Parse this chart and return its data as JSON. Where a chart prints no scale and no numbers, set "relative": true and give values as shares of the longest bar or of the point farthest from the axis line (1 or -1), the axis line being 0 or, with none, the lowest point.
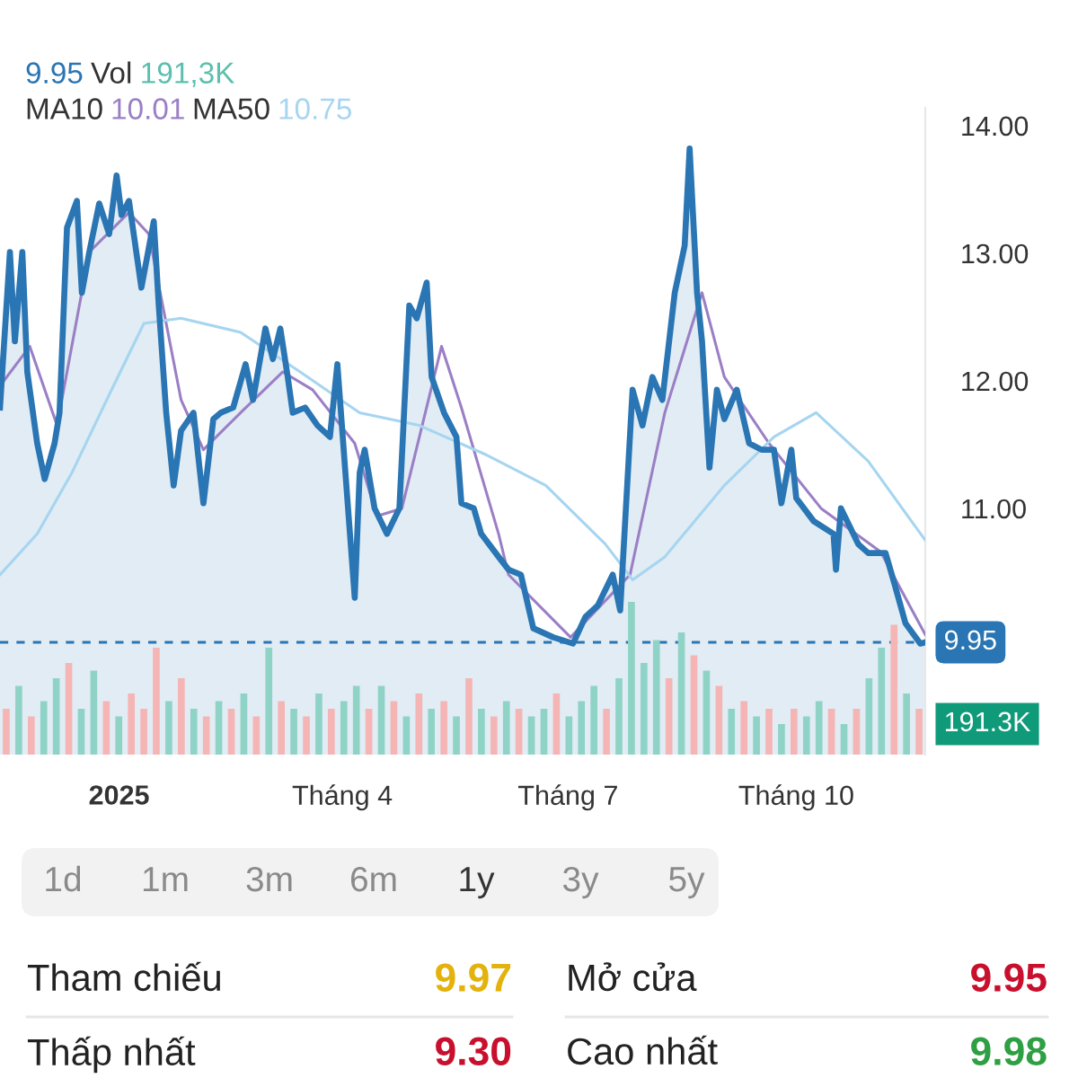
{
  "chart_data": [
    {
      "type": "line",
      "annotations": [
        "9.95",
        "Vol",
        "191,3K",
        "MA10",
        "10.01",
        "MA50",
        "10.75"
      ],
      "xlim": [
        "2024-11-14",
        "2025-11-22"
      ],
      "xticks": [
        {
          "value": "2025-01-01",
          "label": "2025"
        },
        {
          "value": "2025-04-01",
          "label": "Tháng 4"
        },
        {
          "value": "2025-07-01",
          "label": "Tháng 7"
        },
        {
          "value": "2025-10-01",
          "label": "Tháng 10"
        }
      ],
      "ylim": [
        9.07,
        14.14
      ],
      "yticks": [
        {
          "value": 11,
          "label": "11.00"
        },
        {
          "value": 12,
          "label": "12.00"
        },
        {
          "value": 13,
          "label": "13.00"
        },
        {
          "value": 14,
          "label": "14.00"
        }
      ],
      "ref_lines": [
        {
          "axis": "y",
          "value": 9.95,
          "label": "9.95",
          "color": "#2a75b3",
          "line_style": "dashed"
        }
      ],
      "series": [
        {
          "type": "area",
          "color": "#2a75b3",
          "x": [
            "2024-11-14",
            "2024-11-18",
            "2024-11-20",
            "2024-11-23",
            "2024-11-25",
            "2024-11-29",
            "2024-12-02",
            "2024-12-06",
            "2024-12-08",
            "2024-12-11",
            "2024-12-15",
            "2024-12-17",
            "2024-12-20",
            "2024-12-24",
            "2024-12-28",
            "2024-12-31",
            "2025-01-02",
            "2025-01-05",
            "2025-01-10",
            "2025-01-15",
            "2025-01-17",
            "2025-01-20",
            "2025-01-23",
            "2025-01-26",
            "2025-01-31",
            "2025-02-04",
            "2025-02-08",
            "2025-02-11",
            "2025-02-16",
            "2025-02-21",
            "2025-02-24",
            "2025-03-01",
            "2025-03-04",
            "2025-03-07",
            "2025-03-10",
            "2025-03-12",
            "2025-03-17",
            "2025-03-22",
            "2025-03-27",
            "2025-03-30",
            "2025-04-03",
            "2025-04-06",
            "2025-04-08",
            "2025-04-10",
            "2025-04-14",
            "2025-04-19",
            "2025-04-24",
            "2025-04-28",
            "2025-05-01",
            "2025-05-05",
            "2025-05-07",
            "2025-05-12",
            "2025-05-17",
            "2025-05-19",
            "2025-05-24",
            "2025-05-27",
            "2025-06-03",
            "2025-06-07",
            "2025-06-12",
            "2025-06-17",
            "2025-06-25",
            "2025-07-03",
            "2025-07-08",
            "2025-07-13",
            "2025-07-19",
            "2025-07-22",
            "2025-07-27",
            "2025-07-31",
            "2025-08-04",
            "2025-08-08",
            "2025-08-13",
            "2025-08-17",
            "2025-08-19",
            "2025-08-22",
            "2025-08-24",
            "2025-08-27",
            "2025-08-30",
            "2025-09-02",
            "2025-09-07",
            "2025-09-12",
            "2025-09-17",
            "2025-09-22",
            "2025-09-25",
            "2025-09-29",
            "2025-10-01",
            "2025-10-08",
            "2025-10-16",
            "2025-10-17",
            "2025-10-19",
            "2025-10-26",
            "2025-10-30",
            "2025-11-06",
            "2025-11-10",
            "2025-11-14",
            "2025-11-20",
            "2025-11-22"
          ],
          "values": [
            11.79,
            13.01,
            12.31,
            13.01,
            12.07,
            11.51,
            11.23,
            11.51,
            11.75,
            13.2,
            13.41,
            12.69,
            13.01,
            13.39,
            13.15,
            13.61,
            13.3,
            13.41,
            12.73,
            13.25,
            12.59,
            11.75,
            11.18,
            11.61,
            11.75,
            11.04,
            11.7,
            11.75,
            11.79,
            12.13,
            11.85,
            12.41,
            12.17,
            12.41,
            12.03,
            11.75,
            11.79,
            11.65,
            11.56,
            12.13,
            11.08,
            10.3,
            11.28,
            11.46,
            11.0,
            10.8,
            11.0,
            12.59,
            12.49,
            12.77,
            12.03,
            11.75,
            11.56,
            11.04,
            11.0,
            10.8,
            10.62,
            10.52,
            10.48,
            10.06,
            9.99,
            9.94,
            10.15,
            10.24,
            10.48,
            10.2,
            11.93,
            11.65,
            12.03,
            11.85,
            12.69,
            13.06,
            13.82,
            12.69,
            12.31,
            11.32,
            11.93,
            11.7,
            11.93,
            11.51,
            11.46,
            11.46,
            11.04,
            11.46,
            11.08,
            10.9,
            10.8,
            10.52,
            11.0,
            10.72,
            10.65,
            10.65,
            10.38,
            10.1,
            9.94,
            9.95
          ]
        },
        {
          "type": "line",
          "color": "#9b7fc5",
          "x": [
            "2024-11-14",
            "2024-11-26",
            "2024-12-07",
            "2024-12-20",
            "2025-01-05",
            "2025-01-13",
            "2025-01-26",
            "2025-02-04",
            "2025-02-19",
            "2025-03-08",
            "2025-03-20",
            "2025-04-06",
            "2025-04-15",
            "2025-04-25",
            "2025-05-11",
            "2025-05-19",
            "2025-06-03",
            "2025-06-07",
            "2025-07-02",
            "2025-07-26",
            "2025-08-09",
            "2025-08-24",
            "2025-09-02",
            "2025-09-20",
            "2025-10-11",
            "2025-11-04",
            "2025-11-22"
          ],
          "values": [
            11.96,
            12.27,
            11.65,
            13.01,
            13.32,
            13.15,
            11.85,
            11.46,
            11.75,
            12.07,
            11.93,
            11.51,
            10.94,
            11.0,
            12.27,
            11.79,
            10.8,
            10.48,
            9.99,
            10.48,
            11.75,
            12.69,
            12.03,
            11.51,
            11.0,
            10.66,
            10.01
          ]
        },
        {
          "type": "line",
          "color": "#a6d5f0",
          "x": [
            "2024-11-14",
            "2024-11-29",
            "2024-12-13",
            "2024-12-28",
            "2025-01-11",
            "2025-01-26",
            "2025-02-19",
            "2025-03-15",
            "2025-04-08",
            "2025-05-02",
            "2025-05-29",
            "2025-06-22",
            "2025-07-16",
            "2025-07-27",
            "2025-08-09",
            "2025-09-02",
            "2025-09-22",
            "2025-10-09",
            "2025-10-30",
            "2025-11-22"
          ],
          "values": [
            10.48,
            10.8,
            11.28,
            11.89,
            12.45,
            12.49,
            12.38,
            12.07,
            11.75,
            11.65,
            11.42,
            11.18,
            10.72,
            10.44,
            10.62,
            11.18,
            11.56,
            11.75,
            11.37,
            10.75
          ]
        }
      ]
    },
    {
      "type": "bar",
      "relative": true,
      "annotations": [
        "191.3K"
      ],
      "categories": [
        null,
        null,
        null,
        null,
        null,
        null,
        null,
        null,
        null,
        null,
        null,
        null,
        null,
        null,
        null,
        null,
        null,
        null,
        null,
        null,
        null,
        null,
        null,
        null,
        null,
        null,
        null,
        null,
        null,
        null,
        null,
        null,
        null,
        null,
        null,
        null,
        null,
        null,
        null,
        null,
        null,
        null,
        null,
        null,
        null,
        null,
        null,
        null,
        null,
        null,
        null,
        null,
        null,
        null,
        null,
        null,
        null,
        null,
        null,
        null,
        null,
        null,
        null,
        null,
        null,
        null,
        null,
        null,
        null,
        null,
        null,
        null,
        null,
        null
      ],
      "values": [
        0.3,
        0.45,
        0.25,
        0.35,
        0.5,
        0.6,
        0.3,
        0.55,
        0.35,
        0.25,
        0.4,
        0.3,
        0.7,
        0.35,
        0.5,
        0.3,
        0.25,
        0.35,
        0.3,
        0.4,
        0.25,
        0.7,
        0.35,
        0.3,
        0.25,
        0.4,
        0.3,
        0.35,
        0.45,
        0.3,
        0.45,
        0.35,
        0.25,
        0.4,
        0.3,
        0.35,
        0.25,
        0.5,
        0.3,
        0.25,
        0.35,
        0.3,
        0.25,
        0.3,
        0.4,
        0.25,
        0.35,
        0.45,
        0.3,
        0.5,
        1.0,
        0.6,
        0.75,
        0.5,
        0.8,
        0.65,
        0.55,
        0.45,
        0.3,
        0.35,
        0.25,
        0.3,
        0.2,
        0.3,
        0.25,
        0.35,
        0.3,
        0.2,
        0.3,
        0.5,
        0.7,
        0.85,
        0.4,
        0.3
      ],
      "colors": [
        "#f5b5b5",
        "#8fd3c6",
        "#f5b5b5",
        "#8fd3c6",
        "#8fd3c6",
        "#f5b5b5",
        "#8fd3c6",
        "#8fd3c6",
        "#f5b5b5",
        "#8fd3c6",
        "#f5b5b5",
        "#f5b5b5",
        "#f5b5b5",
        "#8fd3c6",
        "#f5b5b5",
        "#8fd3c6",
        "#f5b5b5",
        "#8fd3c6",
        "#f5b5b5",
        "#8fd3c6",
        "#f5b5b5",
        "#8fd3c6",
        "#f5b5b5",
        "#8fd3c6",
        "#f5b5b5",
        "#8fd3c6",
        "#f5b5b5",
        "#8fd3c6",
        "#8fd3c6",
        "#f5b5b5",
        "#8fd3c6",
        "#f5b5b5",
        "#8fd3c6",
        "#f5b5b5",
        "#8fd3c6",
        "#f5b5b5",
        "#8fd3c6",
        "#f5b5b5",
        "#8fd3c6",
        "#f5b5b5",
        "#8fd3c6",
        "#f5b5b5",
        "#8fd3c6",
        "#8fd3c6",
        "#f5b5b5",
        "#8fd3c6",
        "#8fd3c6",
        "#8fd3c6",
        "#f5b5b5",
        "#8fd3c6",
        "#8fd3c6",
        "#8fd3c6",
        "#8fd3c6",
        "#f5b5b5",
        "#8fd3c6",
        "#f5b5b5",
        "#8fd3c6",
        "#f5b5b5",
        "#8fd3c6",
        "#f5b5b5",
        "#8fd3c6",
        "#f5b5b5",
        "#8fd3c6",
        "#f5b5b5",
        "#8fd3c6",
        "#8fd3c6",
        "#f5b5b5",
        "#8fd3c6",
        "#f5b5b5",
        "#8fd3c6",
        "#8fd3c6",
        "#f5b5b5",
        "#8fd3c6",
        "#f5b5b5"
      ]
    },
    {
      "type": "other",
      "annotations": [
        "1d",
        "1m",
        "3m",
        "6m",
        "1y",
        "3y",
        "5y",
        "Tham chiếu",
        "9.97",
        "Mở cửa",
        "9.95",
        "Thấp nhất",
        "9.30",
        "Cao nhất",
        "9.98"
      ],
      "colors": [
        "#8a8a8a",
        "#8a8a8a",
        "#8a8a8a",
        "#8a8a8a",
        "#333333",
        "#8a8a8a",
        "#8a8a8a",
        "#222222",
        "#e3b20c",
        "#222222",
        "#c8102e",
        "#222222",
        "#c8102e",
        "#222222",
        "#2ea043"
      ]
    }
  ]
}
